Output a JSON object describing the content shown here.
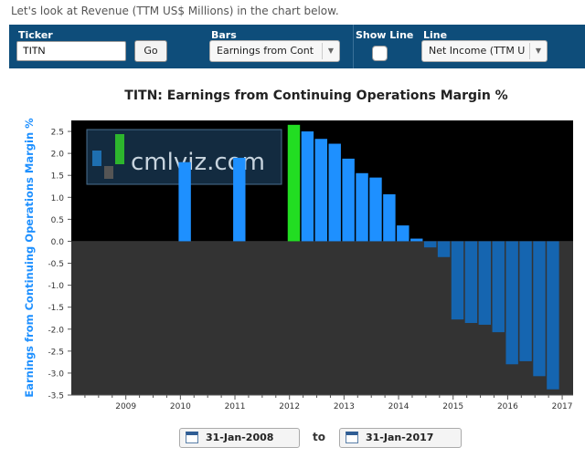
{
  "intro_text": "Let's look at Revenue (TTM US$ Millions) in the chart below.",
  "controls": {
    "ticker_label": "Ticker",
    "ticker_value": "TITN",
    "go_label": "Go",
    "bars_label": "Bars",
    "bars_value": "Earnings from Cont",
    "show_line_label": "Show Line",
    "line_label": "Line",
    "line_value": "Net Income (TTM U"
  },
  "watermark": "cmlviz.com",
  "dates": {
    "from": "31-Jan-2008",
    "to_label": "to",
    "to": "31-Jan-2017"
  },
  "colors": {
    "positive": "#1e90ff",
    "negative": "#1565b0",
    "highlight": "#22dd22",
    "plot_top": "#000000",
    "plot_bottom": "#333333",
    "axis_label": "#1e90ff"
  },
  "chart_data": {
    "type": "bar",
    "title": "TITN: Earnings from Continuing Operations Margin %",
    "ylabel": "Earnings from Continuing Operations Margin %",
    "xlabel": "",
    "ylim": [
      -3.5,
      2.75
    ],
    "xlim": [
      2008.0,
      2017.2
    ],
    "yticks": [
      2.5,
      2.0,
      1.5,
      1.0,
      0.5,
      0.0,
      -0.5,
      -1.0,
      -1.5,
      -2.0,
      -2.5,
      -3.0,
      -3.5
    ],
    "ytick_labels": [
      "2.5",
      "2.0",
      "1.5",
      "1.0",
      "0.5",
      "0.0",
      "-0.5",
      "-1.0",
      "-1.5",
      "-2.0",
      "-2.5",
      "-3.0",
      "-3.5"
    ],
    "xticks": [
      2009,
      2010,
      2011,
      2012,
      2013,
      2014,
      2015,
      2016,
      2017
    ],
    "xtick_labels": [
      "2009",
      "2010",
      "2011",
      "2012",
      "2013",
      "2014",
      "2015",
      "2016",
      "2017"
    ],
    "highlight_index": 2,
    "bars": [
      {
        "x": 2010.08,
        "value": 1.8
      },
      {
        "x": 2011.08,
        "value": 1.9
      },
      {
        "x": 2012.08,
        "value": 2.65
      },
      {
        "x": 2012.33,
        "value": 2.5
      },
      {
        "x": 2012.58,
        "value": 2.33
      },
      {
        "x": 2012.83,
        "value": 2.22
      },
      {
        "x": 2013.08,
        "value": 1.88
      },
      {
        "x": 2013.33,
        "value": 1.55
      },
      {
        "x": 2013.58,
        "value": 1.45
      },
      {
        "x": 2013.83,
        "value": 1.07
      },
      {
        "x": 2014.08,
        "value": 0.36
      },
      {
        "x": 2014.33,
        "value": 0.06
      },
      {
        "x": 2014.58,
        "value": -0.14
      },
      {
        "x": 2014.83,
        "value": -0.36
      },
      {
        "x": 2015.08,
        "value": -1.78
      },
      {
        "x": 2015.33,
        "value": -1.86
      },
      {
        "x": 2015.58,
        "value": -1.9
      },
      {
        "x": 2015.83,
        "value": -2.07
      },
      {
        "x": 2016.08,
        "value": -2.8
      },
      {
        "x": 2016.33,
        "value": -2.73
      },
      {
        "x": 2016.58,
        "value": -3.07
      },
      {
        "x": 2016.83,
        "value": -3.37
      }
    ]
  }
}
